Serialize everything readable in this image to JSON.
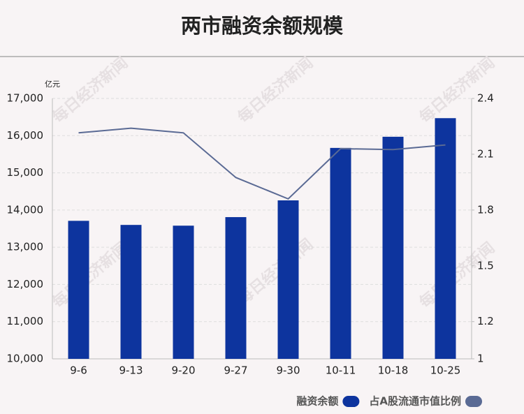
{
  "chart_data": {
    "type": "bar-line",
    "title": "两市融资余额规模",
    "y_unit": "亿元",
    "watermark": "每日经济新闻",
    "categories": [
      "9-6",
      "9-13",
      "9-20",
      "9-27",
      "9-30",
      "10-11",
      "10-18",
      "10-25"
    ],
    "series": [
      {
        "name": "融资余额",
        "type": "bar",
        "color": "#0d349e",
        "values": [
          13710,
          13600,
          13580,
          13810,
          14260,
          15670,
          15970,
          16470
        ]
      },
      {
        "name": "占A股流通市值比例",
        "type": "line",
        "axis": "y2",
        "color": "#5a6a94",
        "values": [
          2.215,
          2.24,
          2.215,
          1.975,
          1.86,
          2.13,
          2.125,
          2.15
        ]
      }
    ],
    "ylim": [
      10000,
      17000
    ],
    "yticks": [
      {
        "value": 10000,
        "label": "10,000"
      },
      {
        "value": 11000,
        "label": "11,000"
      },
      {
        "value": 12000,
        "label": "12,000"
      },
      {
        "value": 13000,
        "label": "13,000"
      },
      {
        "value": 14000,
        "label": "14,000"
      },
      {
        "value": 15000,
        "label": "15,000"
      },
      {
        "value": 16000,
        "label": "16,000"
      },
      {
        "value": 17000,
        "label": "17,000"
      }
    ],
    "y2lim": [
      1,
      2.4
    ],
    "y2ticks": [
      1,
      1.2,
      1.5,
      1.8,
      2.1,
      2.4
    ],
    "grid": true,
    "legend": "bottom-right"
  }
}
